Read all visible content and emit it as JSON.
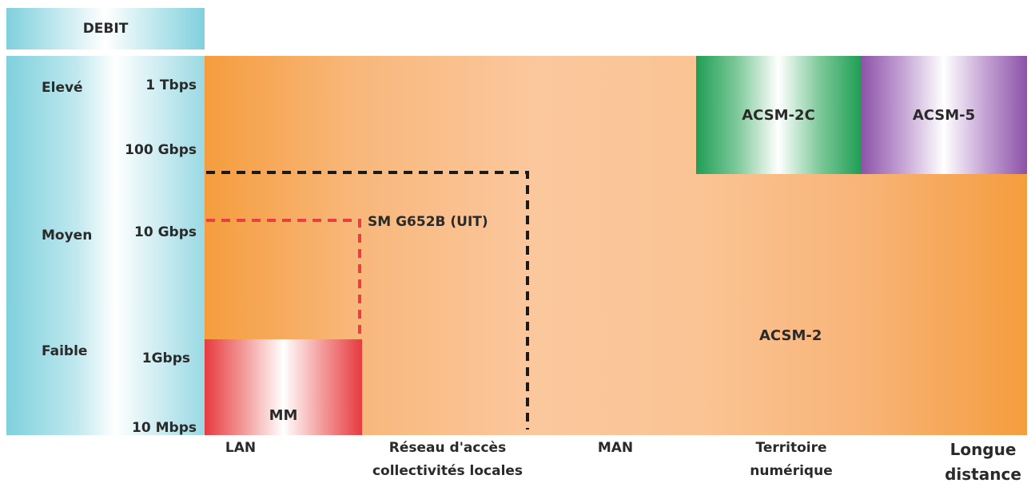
{
  "header": {
    "debit_label": "DEBIT"
  },
  "levels": [
    {
      "label": "Elevé"
    },
    {
      "label": "Moyen"
    },
    {
      "label": "Faible"
    }
  ],
  "rates": [
    "1 Tbps",
    "100 Gbps",
    "10 Gbps",
    "1Gbps",
    "10 Mbps"
  ],
  "regions": {
    "acsm_2c": "ACSM-2C",
    "acsm_5": "ACSM-5",
    "acsm_2": "ACSM-2",
    "mm": "MM",
    "sm": "SM G652B (UIT)"
  },
  "categories": [
    {
      "line1": "LAN",
      "line2": ""
    },
    {
      "line1": "Réseau d'accès",
      "line2": "collectivités locales"
    },
    {
      "line1": "MAN",
      "line2": ""
    },
    {
      "line1": "Territoire",
      "line2": "numérique"
    },
    {
      "line1": "Longue",
      "line2": "distance"
    }
  ],
  "colors": {
    "debit": "#7fd0dd",
    "background": "#f59d3e",
    "acsm_2c": "#1f9e55",
    "acsm_5": "#8c52a8",
    "mm": "#e63b3f",
    "sm_dash": "#e84040",
    "outer_dash": "#1a1a1a"
  }
}
